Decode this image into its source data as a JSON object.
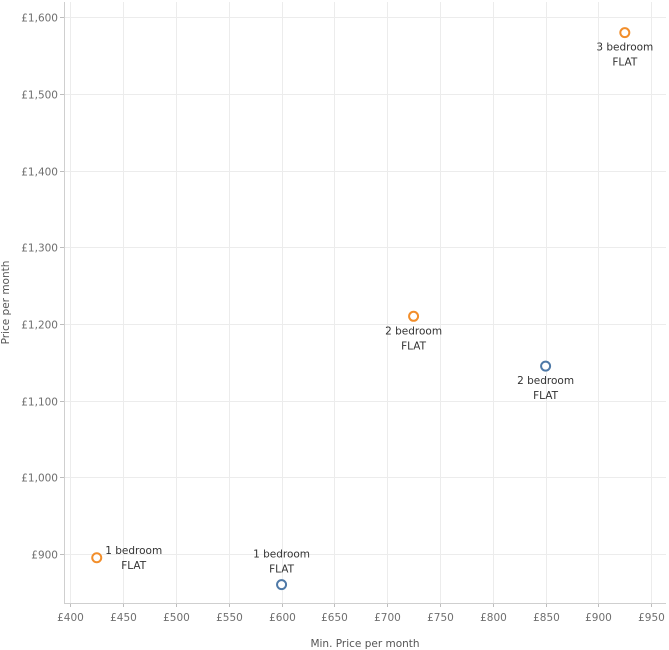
{
  "chart_data": {
    "type": "scatter",
    "title": "",
    "xlabel": "Min. Price per month",
    "ylabel": "Price per month",
    "xlim": [
      394,
      964
    ],
    "ylim": [
      836,
      1620
    ],
    "x_ticks": [
      400,
      450,
      500,
      550,
      600,
      650,
      700,
      750,
      800,
      850,
      900,
      950
    ],
    "x_tick_labels": [
      "£400",
      "£450",
      "£500",
      "£550",
      "£600",
      "£650",
      "£700",
      "£750",
      "£800",
      "£850",
      "£900",
      "£950"
    ],
    "y_ticks": [
      900,
      1000,
      1100,
      1200,
      1300,
      1400,
      1500,
      1600
    ],
    "y_tick_labels": [
      "£900",
      "£1,000",
      "£1,100",
      "£1,200",
      "£1,300",
      "£1,400",
      "£1,500",
      "£1,600"
    ],
    "grid": true,
    "series": [
      {
        "name": "orange",
        "color": "#f28e2b",
        "points": [
          {
            "x": 425,
            "y": 895,
            "label": [
              "1 bedroom",
              "FLAT"
            ],
            "label_pos": "right"
          },
          {
            "x": 725,
            "y": 1210,
            "label": [
              "2 bedroom",
              "FLAT"
            ],
            "label_pos": "below"
          },
          {
            "x": 925,
            "y": 1580,
            "label": [
              "3 bedroom",
              "FLAT"
            ],
            "label_pos": "below"
          }
        ]
      },
      {
        "name": "blue",
        "color": "#4e79a7",
        "points": [
          {
            "x": 600,
            "y": 860,
            "label": [
              "1 bedroom",
              "FLAT"
            ],
            "label_pos": "above"
          },
          {
            "x": 850,
            "y": 1145,
            "label": [
              "2 bedroom",
              "FLAT"
            ],
            "label_pos": "below"
          }
        ]
      }
    ]
  }
}
